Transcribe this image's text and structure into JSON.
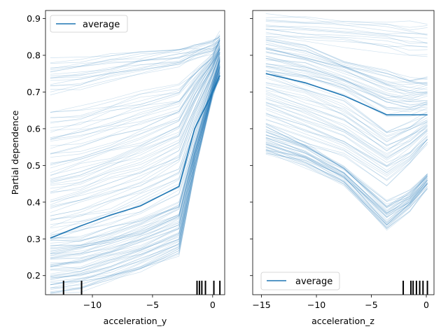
{
  "colors": {
    "line": "#1f77b4",
    "rug": "#000000"
  },
  "chart_data": [
    {
      "type": "line",
      "subtype": "individual-conditional-expectation",
      "xlabel": "acceleration_y",
      "ylabel": "Partial dependence",
      "xlim": [
        -13.9,
        1.0
      ],
      "ylim": [
        0.148,
        0.922
      ],
      "xticks": [
        -10,
        -5,
        0
      ],
      "xtick_labels": [
        "−10",
        "−5",
        "0"
      ],
      "yticks": [
        0.2,
        0.3,
        0.4,
        0.5,
        0.6,
        0.7,
        0.8,
        0.9
      ],
      "ytick_labels": [
        "0.2",
        "0.3",
        "0.4",
        "0.5",
        "0.6",
        "0.7",
        "0.8",
        "0.9"
      ],
      "grid": false,
      "legend": {
        "entries": [
          "average"
        ],
        "placement": "top-left"
      },
      "x": [
        -13.5,
        -11,
        -8.5,
        -6,
        -2.8,
        -1.5,
        0,
        0.6
      ],
      "series": [
        {
          "name": "average",
          "values": [
            0.302,
            0.335,
            0.365,
            0.39,
            0.443,
            0.6,
            0.7,
            0.745
          ]
        }
      ],
      "ice_bands": [
        {
          "count": 60,
          "from": [
            0.15,
            0.158,
            0.182,
            0.21,
            0.255,
            0.48,
            0.69,
            0.74
          ],
          "to": [
            0.3,
            0.31,
            0.33,
            0.355,
            0.4,
            0.56,
            0.72,
            0.79
          ]
        },
        {
          "count": 30,
          "from": [
            0.3,
            0.32,
            0.34,
            0.37,
            0.42,
            0.56,
            0.72,
            0.78
          ],
          "to": [
            0.46,
            0.48,
            0.51,
            0.54,
            0.59,
            0.68,
            0.77,
            0.82
          ]
        },
        {
          "count": 30,
          "from": [
            0.46,
            0.48,
            0.51,
            0.54,
            0.59,
            0.68,
            0.77,
            0.81
          ],
          "to": [
            0.65,
            0.66,
            0.68,
            0.7,
            0.72,
            0.76,
            0.8,
            0.84
          ]
        },
        {
          "count": 20,
          "from": [
            0.7,
            0.71,
            0.73,
            0.75,
            0.77,
            0.79,
            0.81,
            0.83
          ],
          "to": [
            0.785,
            0.79,
            0.8,
            0.81,
            0.82,
            0.83,
            0.84,
            0.86
          ]
        }
      ],
      "rug": [
        -12.4,
        -10.9,
        -1.3,
        -1.1,
        -0.9,
        -0.6,
        0.1,
        0.6
      ]
    },
    {
      "type": "line",
      "subtype": "individual-conditional-expectation",
      "xlabel": "acceleration_z",
      "ylabel": "",
      "xlim": [
        -15.8,
        0.7
      ],
      "ylim": [
        0.148,
        0.922
      ],
      "xticks": [
        -15,
        -10,
        -5,
        0
      ],
      "xtick_labels": [
        "−15",
        "−10",
        "−5",
        "0"
      ],
      "yticks": [
        0.2,
        0.3,
        0.4,
        0.5,
        0.6,
        0.7,
        0.8,
        0.9
      ],
      "ytick_labels": [],
      "grid": false,
      "legend": {
        "entries": [
          "average"
        ],
        "placement": "bottom-left"
      },
      "x": [
        -14.6,
        -11,
        -7.5,
        -3.6,
        -1.5,
        0.1
      ],
      "series": [
        {
          "name": "average",
          "values": [
            0.75,
            0.725,
            0.69,
            0.638,
            0.638,
            0.638
          ]
        }
      ],
      "ice_bands": [
        {
          "count": 40,
          "from": [
            0.53,
            0.5,
            0.45,
            0.325,
            0.38,
            0.44
          ],
          "to": [
            0.6,
            0.56,
            0.5,
            0.4,
            0.43,
            0.48
          ]
        },
        {
          "count": 35,
          "from": [
            0.6,
            0.56,
            0.52,
            0.45,
            0.5,
            0.56
          ],
          "to": [
            0.75,
            0.72,
            0.68,
            0.6,
            0.62,
            0.64
          ]
        },
        {
          "count": 35,
          "from": [
            0.75,
            0.73,
            0.7,
            0.64,
            0.64,
            0.65
          ],
          "to": [
            0.85,
            0.83,
            0.79,
            0.76,
            0.74,
            0.74
          ]
        },
        {
          "count": 15,
          "from": [
            0.85,
            0.84,
            0.83,
            0.81,
            0.8,
            0.8
          ],
          "to": [
            0.91,
            0.9,
            0.895,
            0.89,
            0.885,
            0.88
          ]
        }
      ],
      "rug": [
        -2.1,
        -1.4,
        -1.2,
        -0.9,
        -0.6,
        -0.3,
        0.1
      ]
    }
  ]
}
